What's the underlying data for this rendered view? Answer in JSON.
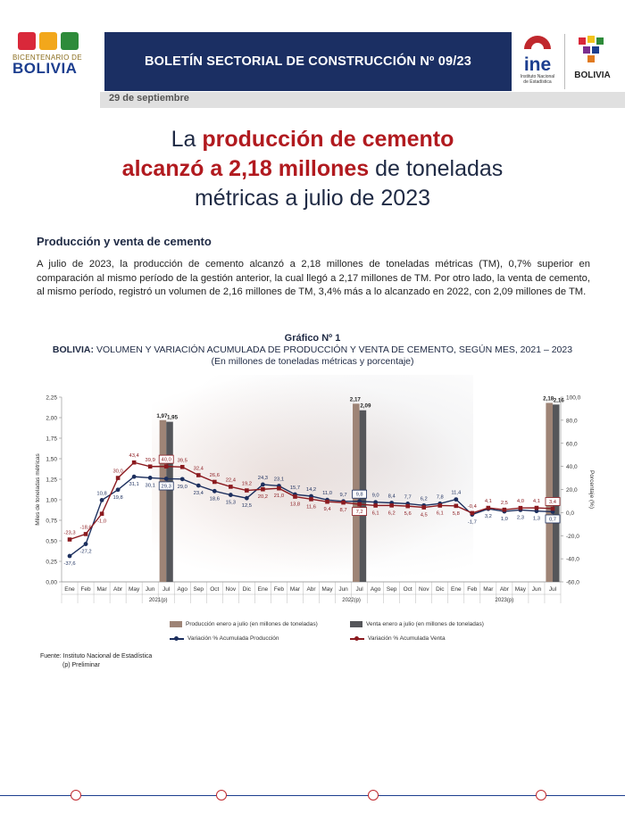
{
  "header": {
    "logo_line1": "BICENTENARIO DE",
    "logo_line2": "BOLIVIA",
    "bulletin_title": "BOLETÍN SECTORIAL DE CONSTRUCCIÓN Nº 09/23",
    "ine_label": "ine",
    "ine_sub": "Instituto Nacional de Estadística",
    "gov_label": "BOLIVIA",
    "date": "29 de septiembre"
  },
  "headline": {
    "part1": "La ",
    "part2": "producción de cemento",
    "part3": "alcanzó a 2,18 millones",
    "part4": " de toneladas",
    "part5": "métricas a julio de 2023"
  },
  "section": {
    "heading": "Producción y venta de cemento",
    "paragraph": "A julio de 2023, la producción de cemento alcanzó a 2,18 millones de toneladas métricas (TM), 0,7% superior en comparación al mismo período de la gestión anterior, la cual llegó a 2,17 millones de TM. Por otro lado, la venta de cemento, al mismo período, registró un volumen de 2,16 millones de TM, 3,4% más a lo alcanzado en 2022, con 2,09 millones de TM."
  },
  "chart_data": {
    "type": "bar+line",
    "label": "Gráfico Nº 1",
    "title_prefix": "BOLIVIA:",
    "title": "VOLUMEN Y VARIACIÓN ACUMULADA DE PRODUCCIÓN Y VENTA DE CEMENTO, SEGÚN MES, 2021 – 2023",
    "subtitle": "(En millones de toneladas métricas y porcentaje)",
    "ylabel_left": "Miles de toneladas métricas",
    "ylabel_right": "Porcentaje (%)",
    "ylim_left": [
      0,
      2.25
    ],
    "ylim_right": [
      -60,
      100
    ],
    "yticks_left": [
      "0,00",
      "0,25",
      "0,50",
      "0,75",
      "1,00",
      "1,25",
      "1,50",
      "1,75",
      "2,00",
      "2,25"
    ],
    "yticks_right": [
      "-60,0",
      "-40,0",
      "-20,0",
      "0,0",
      "20,0",
      "40,0",
      "60,0",
      "80,0",
      "100,0"
    ],
    "categories": [
      "Ene",
      "Feb",
      "Mar",
      "Abr",
      "May",
      "Jun",
      "Jul",
      "Ago",
      "Sep",
      "Oct",
      "Nov",
      "Dic",
      "Ene",
      "Feb",
      "Mar",
      "Abr",
      "May",
      "Jun",
      "Jul",
      "Ago",
      "Sep",
      "Oct",
      "Nov",
      "Dic",
      "Ene",
      "Feb",
      "Mar",
      "Abr",
      "May",
      "Jun",
      "Jul"
    ],
    "year_labels": [
      "2021(p)",
      "2022(p)",
      "2023(p)"
    ],
    "bars": [
      {
        "name": "Producción enero a julio (en millones de toneladas)",
        "color": "#9e8476",
        "points": [
          {
            "index": 6,
            "value": 1.97,
            "label": "1,97"
          },
          {
            "index": 18,
            "value": 2.17,
            "label": "2,17"
          },
          {
            "index": 30,
            "value": 2.18,
            "label": "2,18"
          }
        ]
      },
      {
        "name": "Venta enero a julio (en millones de toneladas)",
        "color": "#55565a",
        "points": [
          {
            "index": 6,
            "value": 1.95,
            "label": "1,95"
          },
          {
            "index": 18,
            "value": 2.09,
            "label": "2,09"
          },
          {
            "index": 30,
            "value": 2.16,
            "label": "2,16"
          }
        ]
      }
    ],
    "series": [
      {
        "name": "Variación % Acumulada Producción",
        "color": "#1c2f5e",
        "values": [
          -37.6,
          -27.2,
          10.8,
          19.8,
          31.1,
          30.1,
          29.3,
          29.0,
          23.4,
          18.6,
          15.3,
          12.5,
          24.3,
          23.1,
          15.7,
          14.2,
          11.0,
          9.7,
          9.8,
          9.0,
          8.4,
          7.7,
          6.2,
          7.8,
          11.4,
          -1.7,
          3.2,
          1.0,
          2.3,
          1.3,
          0.7
        ],
        "labels": [
          "-37,6",
          "-27,2",
          "10,8",
          "19,8",
          "31,1",
          "30,1",
          "29,3",
          "29,0",
          "23,4",
          "18,6",
          "15,3",
          "12,5",
          "24,3",
          "23,1",
          "15,7",
          "14,2",
          "11,0",
          "9,7",
          "9,8",
          "9,0",
          "8,4",
          "7,7",
          "6,2",
          "7,8",
          "11,4",
          "-1,7",
          "3,2",
          "1,0",
          "2,3",
          "1,3",
          "0,7"
        ]
      },
      {
        "name": "Variación % Acumulada Venta",
        "color": "#8b1a1f",
        "values": [
          -23.3,
          -18.6,
          -1.0,
          30.0,
          43.4,
          39.9,
          40.0,
          39.5,
          32.4,
          26.6,
          22.4,
          19.2,
          20.2,
          21.0,
          13.8,
          11.6,
          9.4,
          8.7,
          7.2,
          6.1,
          6.2,
          5.6,
          4.5,
          6.1,
          5.8,
          -0.4,
          4.1,
          2.5,
          4.0,
          4.1,
          3.4
        ],
        "labels": [
          "-23,3",
          "-18,6",
          "-1,0",
          "30,0",
          "43,4",
          "39,9",
          "40,0",
          "39,5",
          "32,4",
          "26,6",
          "22,4",
          "19,2",
          "20,2",
          "21,0",
          "13,8",
          "11,6",
          "9,4",
          "8,7",
          "7,2",
          "6,1",
          "6,2",
          "5,6",
          "4,5",
          "6,1",
          "5,8",
          "-0,4",
          "4,1",
          "2,5",
          "4,0",
          "4,1",
          "3,4"
        ]
      }
    ],
    "legend": "bottom",
    "grid": false
  },
  "source": {
    "line1": "Fuente: Instituto Nacional de Estadística",
    "line2": "(p) Preliminar"
  }
}
